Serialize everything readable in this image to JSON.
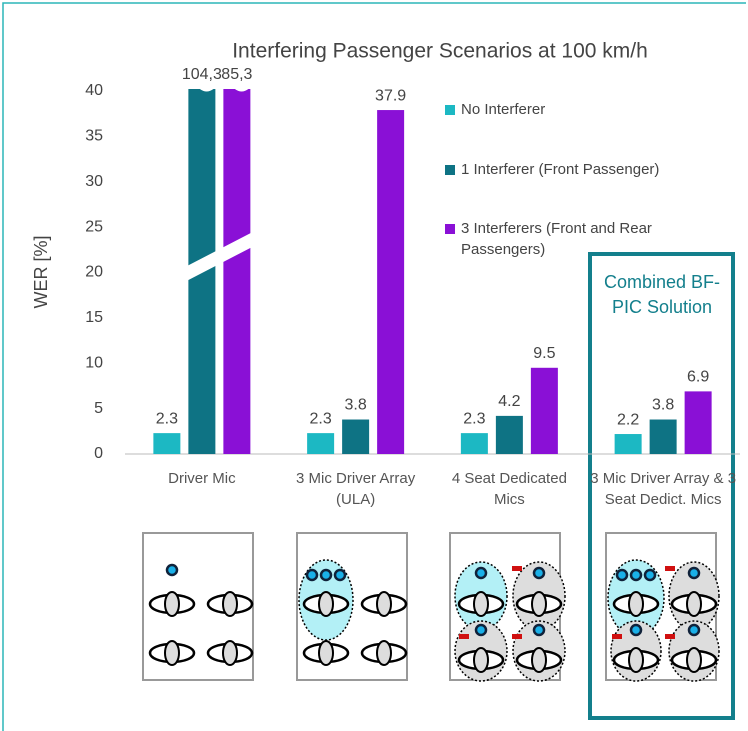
{
  "chart_data": {
    "type": "bar",
    "title": "Interfering Passenger Scenarios at 100 km/h",
    "y_label": "WER [%]",
    "categories": [
      "Driver Mic",
      "3 Mic Driver Array (ULA)",
      "4 Seat Dedicated Mics",
      "3 Mic Driver Array & 3 Seat Dedict. Mics"
    ],
    "series": [
      {
        "name": "No Interferer",
        "color": "#1cb8c3",
        "values": [
          2.3,
          2.3,
          2.3,
          2.2
        ]
      },
      {
        "name": "1 Interferer (Front Passenger)",
        "color": "#0e7384",
        "values": [
          104.3,
          3.8,
          4.2,
          3.8
        ],
        "value_labels": [
          "104,3",
          "3.8",
          "4.2",
          "3.8"
        ]
      },
      {
        "name": "3 Interferers (Front and Rear Passengers)",
        "color": "#8a10d6",
        "values": [
          85.3,
          37.9,
          9.5,
          6.9
        ],
        "value_labels": [
          "85,3",
          "37.9",
          "9.5",
          "6.9"
        ]
      }
    ],
    "ylim": [
      0,
      40
    ],
    "yticks": [
      0,
      5,
      10,
      15,
      20,
      25,
      30,
      35,
      40
    ],
    "grid": false,
    "annotation": "Combined BF-PIC Solution"
  }
}
